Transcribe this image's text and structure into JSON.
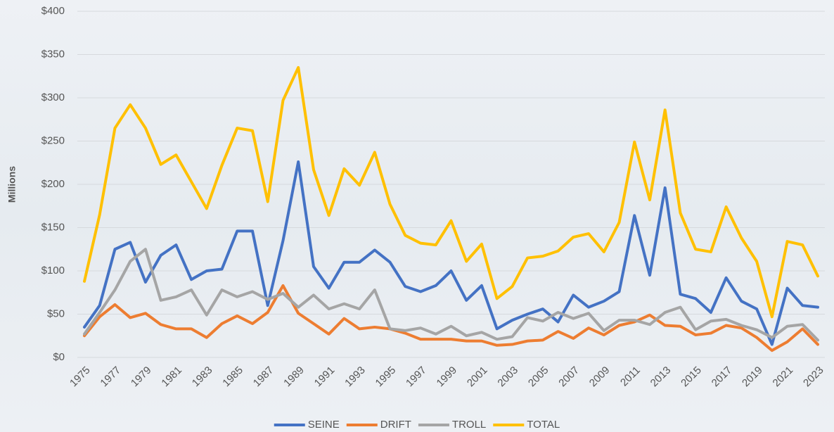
{
  "chart_data": {
    "type": "line",
    "y_label": "Millions",
    "categories": [
      "1975",
      null,
      "1977",
      null,
      "1979",
      null,
      "1981",
      null,
      "1983",
      null,
      "1985",
      null,
      "1987",
      null,
      "1989",
      null,
      "1991",
      null,
      "1993",
      null,
      "1995",
      null,
      "1997",
      null,
      "1999",
      null,
      "2001",
      null,
      "2003",
      null,
      "2005",
      null,
      "2007",
      null,
      "2009",
      null,
      "2011",
      null,
      "2013",
      null,
      "2015",
      null,
      "2017",
      null,
      "2019",
      null,
      "2021",
      null,
      "2023"
    ],
    "series": [
      {
        "name": "SEINE",
        "color": "#4472c4",
        "values": [
          35,
          60,
          125,
          133,
          87,
          118,
          130,
          90,
          100,
          102,
          146,
          146,
          60,
          135,
          226,
          105,
          80,
          110,
          110,
          124,
          110,
          82,
          76,
          83,
          100,
          66,
          83,
          33,
          43,
          50,
          56,
          41,
          72,
          58,
          65,
          76,
          164,
          95,
          196,
          73,
          68,
          52,
          92,
          65,
          56,
          15,
          80,
          60,
          58
        ]
      },
      {
        "name": "DRIFT",
        "color": "#ed7d31",
        "values": [
          25,
          47,
          61,
          46,
          51,
          38,
          33,
          33,
          23,
          39,
          48,
          39,
          52,
          83,
          51,
          39,
          27,
          45,
          33,
          35,
          33,
          28,
          21,
          21,
          21,
          19,
          19,
          14,
          15,
          19,
          20,
          30,
          22,
          34,
          26,
          37,
          41,
          49,
          37,
          36,
          26,
          28,
          37,
          34,
          23,
          8,
          18,
          33,
          15
        ]
      },
      {
        "name": "TROLL",
        "color": "#a5a5a5",
        "values": [
          27,
          52,
          78,
          111,
          125,
          66,
          70,
          78,
          49,
          78,
          70,
          76,
          67,
          74,
          58,
          72,
          56,
          62,
          56,
          78,
          33,
          31,
          34,
          27,
          36,
          25,
          29,
          21,
          24,
          46,
          42,
          52,
          45,
          51,
          31,
          43,
          43,
          38,
          52,
          58,
          32,
          42,
          44,
          37,
          32,
          23,
          36,
          38,
          20
        ]
      },
      {
        "name": "TOTAL",
        "color": "#ffc000",
        "values": [
          88,
          165,
          265,
          292,
          265,
          223,
          234,
          203,
          172,
          222,
          265,
          262,
          180,
          297,
          335,
          217,
          164,
          218,
          199,
          237,
          177,
          141,
          132,
          130,
          158,
          111,
          131,
          68,
          82,
          115,
          117,
          123,
          139,
          143,
          122,
          156,
          249,
          182,
          286,
          167,
          125,
          122,
          174,
          138,
          111,
          47,
          134,
          130,
          94
        ]
      }
    ],
    "ylim": [
      0,
      400
    ],
    "yticks": [
      {
        "value": 0,
        "label": "$0"
      },
      {
        "value": 50,
        "label": "$50"
      },
      {
        "value": 100,
        "label": "$100"
      },
      {
        "value": 150,
        "label": "$150"
      },
      {
        "value": 200,
        "label": "$200"
      },
      {
        "value": 250,
        "label": "$250"
      },
      {
        "value": 300,
        "label": "$300"
      },
      {
        "value": 350,
        "label": "$350"
      },
      {
        "value": 400,
        "label": "$400"
      }
    ],
    "grid": true,
    "legend": "bottom"
  }
}
